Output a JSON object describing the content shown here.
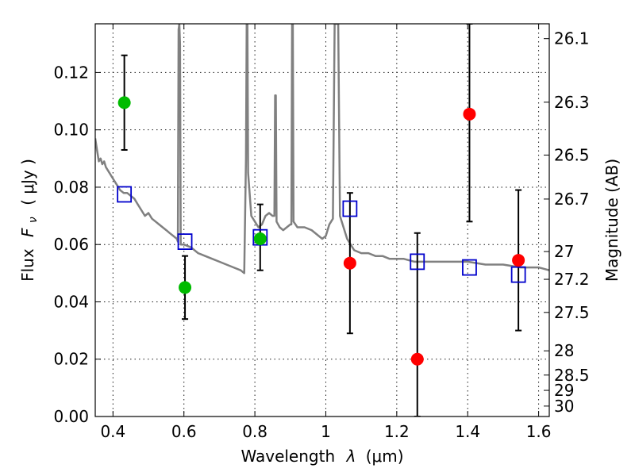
{
  "chart_data": {
    "type": "scatter",
    "xlabel_text": "Wavelength",
    "xlabel_sym": "λ",
    "xlabel_unit": "(μm)",
    "ylabel_text": "Flux",
    "ylabel_sym": "F",
    "ylabel_sub": "ν",
    "ylabel_unit": "( μJy )",
    "ylabel_right": "Magnitude (AB)",
    "xlim": [
      0.35,
      1.63
    ],
    "ylim": [
      0.0,
      0.137
    ],
    "grid": true,
    "x_ticks": [
      {
        "value": 0.4,
        "label": "0.4"
      },
      {
        "value": 0.6,
        "label": "0.6"
      },
      {
        "value": 0.8,
        "label": "0.8"
      },
      {
        "value": 1.0,
        "label": "1"
      },
      {
        "value": 1.2,
        "label": "1.2"
      },
      {
        "value": 1.4,
        "label": "1.4"
      },
      {
        "value": 1.6,
        "label": "1.6"
      }
    ],
    "y_ticks": [
      {
        "value": 0.0,
        "label": "0.00"
      },
      {
        "value": 0.02,
        "label": "0.02"
      },
      {
        "value": 0.04,
        "label": "0.04"
      },
      {
        "value": 0.06,
        "label": "0.06"
      },
      {
        "value": 0.08,
        "label": "0.08"
      },
      {
        "value": 0.1,
        "label": "0.10"
      },
      {
        "value": 0.12,
        "label": "0.12"
      }
    ],
    "mag_ticks": [
      {
        "mag": 26.1,
        "label": "26.1"
      },
      {
        "mag": 26.3,
        "label": "26.3"
      },
      {
        "mag": 26.5,
        "label": "26.5"
      },
      {
        "mag": 26.7,
        "label": "26.7"
      },
      {
        "mag": 27.0,
        "label": "27"
      },
      {
        "mag": 27.2,
        "label": "27.2"
      },
      {
        "mag": 27.5,
        "label": "27.5"
      },
      {
        "mag": 28.0,
        "label": "28"
      },
      {
        "mag": 28.5,
        "label": "28.5"
      },
      {
        "mag": 29.0,
        "label": "29"
      },
      {
        "mag": 30.0,
        "label": "30"
      }
    ],
    "series": [
      {
        "kind": "model_spectrum",
        "color": "#808080",
        "points": [
          [
            0.35,
            0.097
          ],
          [
            0.355,
            0.093
          ],
          [
            0.36,
            0.089
          ],
          [
            0.365,
            0.09
          ],
          [
            0.37,
            0.088
          ],
          [
            0.375,
            0.089
          ],
          [
            0.38,
            0.087
          ],
          [
            0.39,
            0.085
          ],
          [
            0.4,
            0.083
          ],
          [
            0.41,
            0.081
          ],
          [
            0.42,
            0.079
          ],
          [
            0.43,
            0.078
          ],
          [
            0.44,
            0.078
          ],
          [
            0.45,
            0.077
          ],
          [
            0.46,
            0.076
          ],
          [
            0.47,
            0.074
          ],
          [
            0.48,
            0.072
          ],
          [
            0.49,
            0.07
          ],
          [
            0.5,
            0.071
          ],
          [
            0.51,
            0.069
          ],
          [
            0.52,
            0.068
          ],
          [
            0.53,
            0.067
          ],
          [
            0.54,
            0.066
          ],
          [
            0.55,
            0.065
          ],
          [
            0.56,
            0.064
          ],
          [
            0.57,
            0.063
          ],
          [
            0.58,
            0.062
          ],
          [
            0.583,
            0.061
          ],
          [
            0.585,
            0.135
          ],
          [
            0.587,
            0.137
          ],
          [
            0.589,
            0.13
          ],
          [
            0.591,
            0.06
          ],
          [
            0.6,
            0.06
          ],
          [
            0.62,
            0.059
          ],
          [
            0.64,
            0.057
          ],
          [
            0.66,
            0.056
          ],
          [
            0.68,
            0.055
          ],
          [
            0.7,
            0.054
          ],
          [
            0.72,
            0.053
          ],
          [
            0.74,
            0.052
          ],
          [
            0.76,
            0.051
          ],
          [
            0.77,
            0.05
          ],
          [
            0.775,
            0.09
          ],
          [
            0.777,
            0.137
          ],
          [
            0.779,
            0.137
          ],
          [
            0.781,
            0.085
          ],
          [
            0.79,
            0.07
          ],
          [
            0.8,
            0.068
          ],
          [
            0.81,
            0.066
          ],
          [
            0.82,
            0.067
          ],
          [
            0.83,
            0.07
          ],
          [
            0.84,
            0.071
          ],
          [
            0.85,
            0.07
          ],
          [
            0.855,
            0.07
          ],
          [
            0.857,
            0.112
          ],
          [
            0.859,
            0.112
          ],
          [
            0.861,
            0.068
          ],
          [
            0.87,
            0.066
          ],
          [
            0.88,
            0.065
          ],
          [
            0.89,
            0.066
          ],
          [
            0.9,
            0.067
          ],
          [
            0.903,
            0.067
          ],
          [
            0.905,
            0.137
          ],
          [
            0.907,
            0.137
          ],
          [
            0.909,
            0.068
          ],
          [
            0.92,
            0.066
          ],
          [
            0.94,
            0.066
          ],
          [
            0.96,
            0.065
          ],
          [
            0.98,
            0.063
          ],
          [
            0.99,
            0.062
          ],
          [
            1.0,
            0.063
          ],
          [
            1.01,
            0.067
          ],
          [
            1.02,
            0.069
          ],
          [
            1.025,
            0.137
          ],
          [
            1.035,
            0.137
          ],
          [
            1.04,
            0.07
          ],
          [
            1.06,
            0.062
          ],
          [
            1.08,
            0.058
          ],
          [
            1.1,
            0.057
          ],
          [
            1.12,
            0.057
          ],
          [
            1.14,
            0.056
          ],
          [
            1.16,
            0.056
          ],
          [
            1.18,
            0.055
          ],
          [
            1.2,
            0.055
          ],
          [
            1.22,
            0.055
          ],
          [
            1.25,
            0.054
          ],
          [
            1.3,
            0.054
          ],
          [
            1.35,
            0.054
          ],
          [
            1.4,
            0.054
          ],
          [
            1.45,
            0.053
          ],
          [
            1.5,
            0.053
          ],
          [
            1.55,
            0.052
          ],
          [
            1.6,
            0.052
          ],
          [
            1.63,
            0.051
          ]
        ]
      },
      {
        "kind": "model_photometry",
        "marker": "open_square",
        "color": "#0000cc",
        "x": [
          0.432,
          0.603,
          0.815,
          1.068,
          1.258,
          1.405,
          1.543
        ],
        "y": [
          0.0775,
          0.061,
          0.0625,
          0.0725,
          0.054,
          0.052,
          0.0495
        ]
      },
      {
        "kind": "detections",
        "marker": "filled_circle",
        "color": "#00bb00",
        "x": [
          0.432,
          0.603,
          0.815
        ],
        "y": [
          0.1095,
          0.045,
          0.062
        ],
        "err_low": [
          0.093,
          0.034,
          0.051
        ],
        "err_high": [
          0.126,
          0.056,
          0.074
        ]
      },
      {
        "kind": "measurements",
        "marker": "filled_circle",
        "color": "#ff0000",
        "x": [
          1.068,
          1.258,
          1.405,
          1.543
        ],
        "y": [
          0.0535,
          0.02,
          0.1055,
          0.0545
        ],
        "err_low": [
          0.029,
          0.0,
          0.068,
          0.03
        ],
        "err_high": [
          0.078,
          0.064,
          0.137,
          0.079
        ]
      }
    ]
  }
}
